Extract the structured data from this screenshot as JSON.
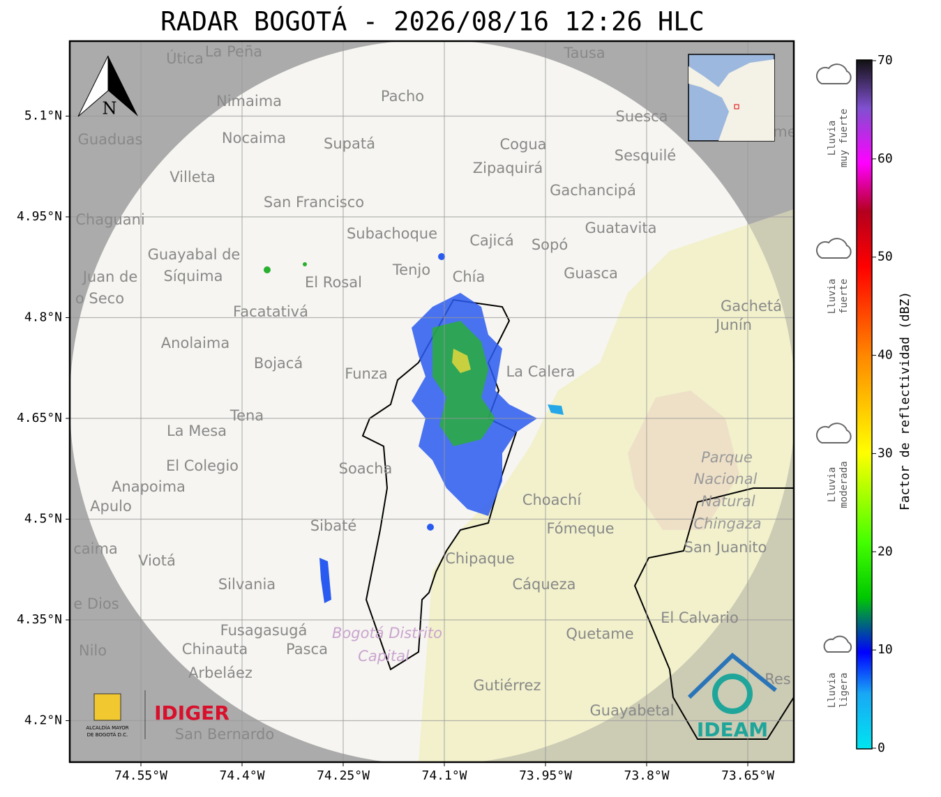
{
  "header": {
    "title": "RADAR BOGOTÁ - 2026/08/16 12:26 HLC"
  },
  "map": {
    "lon_ticks": [
      {
        "value": -74.55,
        "label": "74.55°W"
      },
      {
        "value": -74.4,
        "label": "74.4°W"
      },
      {
        "value": -74.25,
        "label": "74.25°W"
      },
      {
        "value": -74.1,
        "label": "74.1°W"
      },
      {
        "value": -73.95,
        "label": "73.95°W"
      },
      {
        "value": -73.8,
        "label": "73.8°W"
      },
      {
        "value": -73.65,
        "label": "73.65°W"
      }
    ],
    "lat_ticks": [
      {
        "value": 5.1,
        "label": "5.1°N"
      },
      {
        "value": 4.95,
        "label": "4.95°N"
      },
      {
        "value": 4.8,
        "label": "4.8°N"
      },
      {
        "value": 4.65,
        "label": "4.65°N"
      },
      {
        "value": 4.5,
        "label": "4.5°N"
      },
      {
        "value": 4.35,
        "label": "4.35°N"
      },
      {
        "value": 4.2,
        "label": "4.2°N"
      }
    ],
    "north_label": "N",
    "places": [
      "Útica",
      "La Peña",
      "Tausa",
      "Pacho",
      "Nimaima",
      "Guaduas",
      "Nocaima",
      "Supatá",
      "Cogua",
      "Suesca",
      "Sesquilé",
      "Zipaquirá",
      "Villeta",
      "Gachancipá",
      "San Francisco",
      "Chaguani",
      "Subachoque",
      "Cajicá",
      "Sopó",
      "Guatavita",
      "Guayabal de",
      "Síquima",
      "Juan de",
      "Tenjo",
      "Chía",
      "El Rosal",
      "Guasca",
      "o Seco",
      "Facatativá",
      "Gachetá",
      "Junín",
      "Anolaima",
      "Bojacá",
      "Funza",
      "La Calera",
      "Tena",
      "La Mesa",
      "El Colegio",
      "Soacha",
      "Parque",
      "Nacional",
      "Anapoima",
      "Natural",
      "Apulo",
      "Choachí",
      "Chingaza",
      "Sibaté",
      "Fómeque",
      "San Juanito",
      "caima",
      "Viotá",
      "Chipaque",
      "Silvania",
      "Cáqueza",
      "e Dios",
      "El Calvario",
      "Fusagasugá",
      "Bogotá Distrito",
      "Quetame",
      "Nilo",
      "Chinauta",
      "Pasca",
      "Capital",
      "Arbeláez",
      "Gutiérrez",
      "Guayabetal",
      "San Bernardo",
      "Res",
      "me"
    ]
  },
  "colorbar": {
    "label": "Factor de reflectividad (dBZ)",
    "lim": [
      0,
      70
    ],
    "ticks": [
      0,
      10,
      20,
      30,
      40,
      50,
      60,
      70
    ]
  },
  "rain_levels": [
    {
      "lines": [
        "Lluvia",
        "muy fuerte"
      ]
    },
    {
      "lines": [
        "Lluvia",
        "fuerte"
      ]
    },
    {
      "lines": [
        "Lluvia",
        "moderada"
      ]
    },
    {
      "lines": [
        "Lluvia",
        "ligera"
      ]
    }
  ],
  "logos": {
    "alcaldia": [
      "ALCALDÍA MAYOR",
      "DE BOGOTÁ D.C."
    ],
    "idiger": "IDIGER",
    "ideam": "IDEAM"
  }
}
